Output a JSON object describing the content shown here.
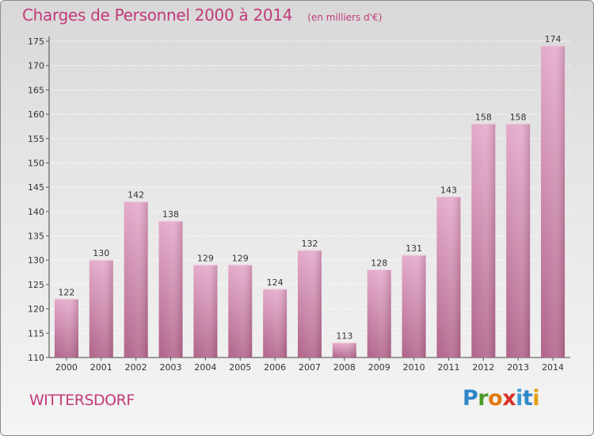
{
  "header": {
    "title": "Charges de Personnel 2000 à 2014",
    "subtitle": "(en milliers d'€)"
  },
  "footer": {
    "place": "WITTERSDORF",
    "logo_letters": [
      "P",
      "r",
      "o",
      "x",
      "i",
      "t",
      "i"
    ]
  },
  "colors": {
    "title": "#c23a7a",
    "bar_light": "#e2a6c8",
    "bar_dark": "#b2668c",
    "logo": [
      "#2e86c8",
      "#4a9a2a",
      "#e07a10",
      "#d8302a",
      "#3a9ad8",
      "#2e86c8",
      "#e0a010"
    ]
  },
  "chart_data": {
    "type": "bar",
    "categories": [
      "2000",
      "2001",
      "2002",
      "2003",
      "2004",
      "2005",
      "2006",
      "2007",
      "2008",
      "2009",
      "2010",
      "2011",
      "2012",
      "2013",
      "2014"
    ],
    "values": [
      122,
      130,
      142,
      138,
      129,
      129,
      124,
      132,
      113,
      128,
      131,
      143,
      158,
      158,
      174
    ],
    "ylim": [
      110,
      175
    ],
    "yticks": [
      110,
      115,
      120,
      125,
      130,
      135,
      140,
      145,
      150,
      155,
      160,
      165,
      170,
      175
    ],
    "grid": true,
    "title": "Charges de Personnel 2000 à 2014",
    "xlabel": "",
    "ylabel": ""
  }
}
